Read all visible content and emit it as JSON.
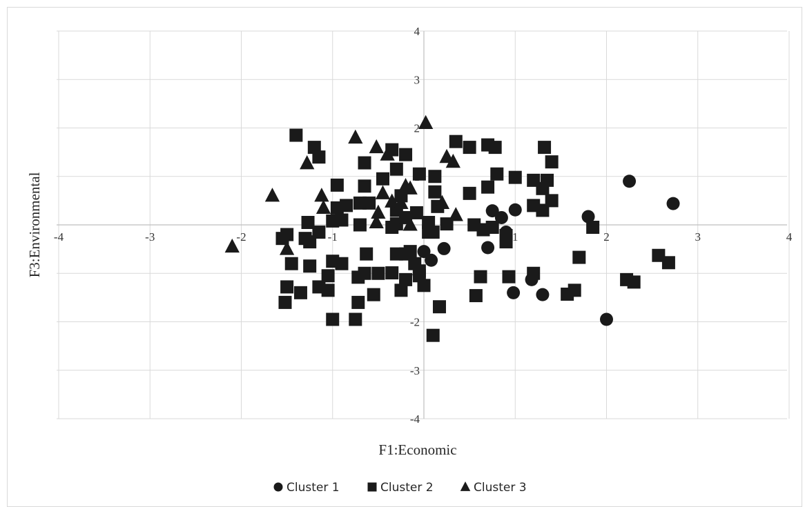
{
  "chart_data": {
    "type": "scatter",
    "title": "",
    "xlabel": "F1:Economic",
    "ylabel": "F3:Environmental",
    "xlim": [
      -4,
      4
    ],
    "ylim": [
      -4,
      4
    ],
    "xticks": [
      -4,
      -3,
      -2,
      -1,
      0,
      1,
      2,
      3,
      4
    ],
    "yticks": [
      -4,
      -3,
      -2,
      -1,
      0,
      1,
      2,
      3,
      4
    ],
    "tick_labels_x": [
      "-4",
      "-3",
      "-2",
      "-1",
      "",
      "1",
      "2",
      "3",
      "4"
    ],
    "tick_labels_y": [
      "-4",
      "-3",
      "-2",
      "-1",
      "",
      "1",
      "2",
      "3",
      "4"
    ],
    "grid": true,
    "legend_position": "bottom",
    "marker_color": "#1a1a1a",
    "series": [
      {
        "name": "Cluster 1",
        "marker": "circle",
        "points": [
          [
            2.25,
            0.9
          ],
          [
            2.73,
            0.44
          ],
          [
            1.8,
            0.17
          ],
          [
            0.75,
            0.29
          ],
          [
            0.85,
            0.15
          ],
          [
            1.0,
            0.31
          ],
          [
            0.7,
            -0.47
          ],
          [
            0.9,
            -0.15
          ],
          [
            0.22,
            -0.49
          ],
          [
            0.08,
            -0.73
          ],
          [
            0.0,
            -0.55
          ],
          [
            0.98,
            -1.4
          ],
          [
            1.18,
            -1.13
          ],
          [
            1.3,
            -1.44
          ],
          [
            2.0,
            -1.95
          ]
        ]
      },
      {
        "name": "Cluster 2",
        "marker": "square",
        "points": [
          [
            -1.4,
            1.85
          ],
          [
            -1.2,
            1.6
          ],
          [
            -1.15,
            1.4
          ],
          [
            -0.95,
            0.82
          ],
          [
            -0.95,
            0.35
          ],
          [
            -0.85,
            0.4
          ],
          [
            -0.7,
            0.45
          ],
          [
            -0.65,
            0.8
          ],
          [
            -0.65,
            1.28
          ],
          [
            -0.6,
            0.45
          ],
          [
            -0.45,
            0.95
          ],
          [
            -0.35,
            1.55
          ],
          [
            -0.3,
            1.15
          ],
          [
            -0.2,
            1.45
          ],
          [
            -0.05,
            1.05
          ],
          [
            0.35,
            1.72
          ],
          [
            0.5,
            1.6
          ],
          [
            0.7,
            1.65
          ],
          [
            0.78,
            1.6
          ],
          [
            0.8,
            1.05
          ],
          [
            0.7,
            0.78
          ],
          [
            1.0,
            0.98
          ],
          [
            1.2,
            0.92
          ],
          [
            1.3,
            0.75
          ],
          [
            1.35,
            0.92
          ],
          [
            1.32,
            1.6
          ],
          [
            1.4,
            1.3
          ],
          [
            1.4,
            0.5
          ],
          [
            1.2,
            0.4
          ],
          [
            1.3,
            0.3
          ],
          [
            0.5,
            0.65
          ],
          [
            0.12,
            0.68
          ],
          [
            0.15,
            0.38
          ],
          [
            0.25,
            0.02
          ],
          [
            0.1,
            -0.15
          ],
          [
            0.55,
            0.0
          ],
          [
            0.65,
            -0.1
          ],
          [
            0.75,
            -0.05
          ],
          [
            0.9,
            -0.35
          ],
          [
            0.9,
            -0.22
          ],
          [
            1.85,
            -0.05
          ],
          [
            1.7,
            -0.67
          ],
          [
            2.22,
            -1.13
          ],
          [
            2.3,
            -1.18
          ],
          [
            2.57,
            -0.63
          ],
          [
            2.68,
            -0.78
          ],
          [
            1.57,
            -1.43
          ],
          [
            1.65,
            -1.35
          ],
          [
            1.2,
            -1.0
          ],
          [
            0.93,
            -1.07
          ],
          [
            0.62,
            -1.07
          ],
          [
            0.57,
            -1.46
          ],
          [
            0.17,
            -1.69
          ],
          [
            0.1,
            -2.28
          ],
          [
            -0.55,
            -1.44
          ],
          [
            -0.5,
            -1.0
          ],
          [
            -0.25,
            -1.35
          ],
          [
            -0.2,
            -1.13
          ],
          [
            0.0,
            -1.25
          ],
          [
            -0.05,
            -1.05
          ],
          [
            -0.72,
            -1.6
          ],
          [
            -0.72,
            -1.08
          ],
          [
            -0.65,
            -1.0
          ],
          [
            -0.63,
            -0.6
          ],
          [
            -1.0,
            -1.95
          ],
          [
            -0.75,
            -1.95
          ],
          [
            -1.0,
            -0.75
          ],
          [
            -0.9,
            -0.8
          ],
          [
            -1.05,
            -1.05
          ],
          [
            -1.05,
            -1.35
          ],
          [
            -1.15,
            -1.28
          ],
          [
            -1.25,
            -0.85
          ],
          [
            -1.35,
            -1.4
          ],
          [
            -1.5,
            -1.28
          ],
          [
            -1.52,
            -1.6
          ],
          [
            -1.45,
            -0.8
          ],
          [
            -1.55,
            -0.28
          ],
          [
            -1.5,
            -0.2
          ],
          [
            -1.3,
            -0.28
          ],
          [
            -1.25,
            -0.35
          ],
          [
            -1.15,
            -0.15
          ],
          [
            -1.27,
            0.05
          ],
          [
            -1.0,
            0.08
          ],
          [
            -0.9,
            0.1
          ],
          [
            -0.7,
            0.0
          ],
          [
            -0.35,
            -0.05
          ],
          [
            -0.3,
            0.02
          ],
          [
            -0.3,
            0.3
          ],
          [
            -0.2,
            0.15
          ],
          [
            -0.08,
            0.25
          ],
          [
            0.05,
            -0.15
          ],
          [
            -0.15,
            -0.55
          ],
          [
            -0.3,
            -0.6
          ],
          [
            -0.2,
            -0.6
          ],
          [
            -0.05,
            -0.95
          ],
          [
            -0.35,
            -0.99
          ],
          [
            -0.1,
            -0.8
          ],
          [
            0.05,
            0.05
          ],
          [
            -0.25,
            0.6
          ],
          [
            0.12,
            1.0
          ]
        ]
      },
      {
        "name": "Cluster 3",
        "marker": "triangle",
        "points": [
          [
            -2.1,
            -0.45
          ],
          [
            -1.66,
            0.6
          ],
          [
            -1.5,
            -0.5
          ],
          [
            -1.28,
            1.27
          ],
          [
            -1.12,
            0.6
          ],
          [
            -1.1,
            0.35
          ],
          [
            -0.75,
            1.8
          ],
          [
            -0.52,
            1.6
          ],
          [
            -0.4,
            1.45
          ],
          [
            -0.5,
            0.25
          ],
          [
            -0.45,
            0.65
          ],
          [
            -0.35,
            0.48
          ],
          [
            -0.25,
            0.45
          ],
          [
            -0.2,
            0.8
          ],
          [
            -0.15,
            0.75
          ],
          [
            0.02,
            2.1
          ],
          [
            0.25,
            1.4
          ],
          [
            0.32,
            1.3
          ],
          [
            0.2,
            0.45
          ],
          [
            0.35,
            0.2
          ],
          [
            -0.52,
            0.05
          ],
          [
            -0.15,
            0.0
          ]
        ]
      }
    ]
  }
}
